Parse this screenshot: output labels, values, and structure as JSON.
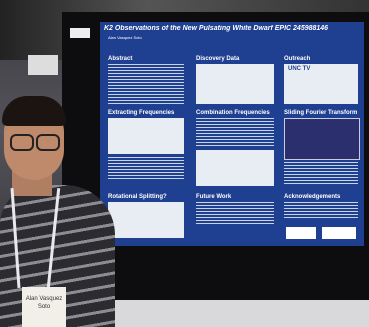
{
  "poster": {
    "title": "K2 Observations of the New Pulsating White Dwarf EPIC 245988146",
    "author": "Alan Vasquez Soto",
    "sections": [
      "Abstract",
      "Discovery Data",
      "Outreach",
      "Extracting Frequencies",
      "Combination Frequencies",
      "Sliding Fourier Transform",
      "Rotational Splitting?",
      "Future Work",
      "Acknowledgements"
    ],
    "logo": "UNC TV"
  },
  "badge": {
    "name": "Alan Vasquez Soto"
  }
}
